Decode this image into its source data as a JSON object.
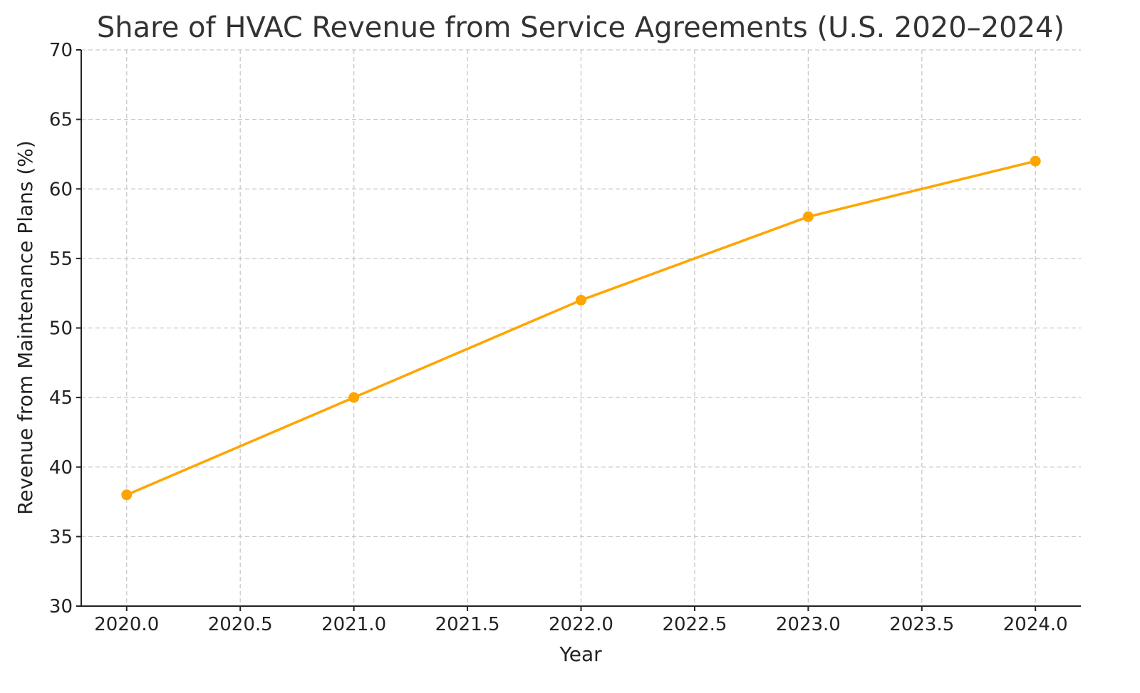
{
  "chart_data": {
    "type": "line",
    "title": "Share of HVAC Revenue from Service Agreements (U.S. 2020–2024)",
    "xlabel": "Year",
    "ylabel": "Revenue from Maintenance Plans (%)",
    "x": [
      2020,
      2021,
      2022,
      2023,
      2024
    ],
    "series": [
      {
        "values": [
          38,
          45,
          52,
          58,
          62
        ],
        "color": "#FFA500"
      }
    ],
    "xlim": [
      2019.8,
      2024.2
    ],
    "ylim": [
      30,
      70
    ],
    "xticks": [
      2020.0,
      2020.5,
      2021.0,
      2021.5,
      2022.0,
      2022.5,
      2023.0,
      2023.5,
      2024.0
    ],
    "xtick_labels": [
      "2020.0",
      "2020.5",
      "2021.0",
      "2021.5",
      "2022.0",
      "2022.5",
      "2023.0",
      "2023.5",
      "2024.0"
    ],
    "yticks": [
      30,
      35,
      40,
      45,
      50,
      55,
      60,
      65,
      70
    ],
    "ytick_labels": [
      "30",
      "35",
      "40",
      "45",
      "50",
      "55",
      "60",
      "65",
      "70"
    ],
    "grid": true,
    "grid_style": "dashed",
    "markers": "circle"
  }
}
